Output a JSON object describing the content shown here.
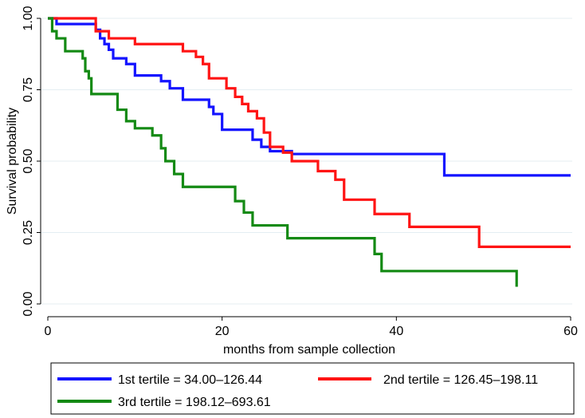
{
  "chart_data": {
    "type": "line",
    "subtype": "kaplan-meier-step",
    "xlabel": "months from sample collection",
    "ylabel": "Survival probability",
    "xlim": [
      0,
      60
    ],
    "ylim": [
      0,
      1
    ],
    "xticks": [
      0,
      20,
      40,
      60
    ],
    "yticks": [
      0,
      0.25,
      0.5,
      0.75,
      1.0
    ],
    "xtick_labels": [
      "0",
      "20",
      "40",
      "60"
    ],
    "ytick_labels": [
      "0.00",
      "0.25",
      "0.50",
      "0.75",
      "1.00"
    ],
    "grid": "horizontal",
    "legend_position": "bottom",
    "series": [
      {
        "name": "1st tertile = 34.00–126.44",
        "color": "#1414ff",
        "x": [
          0,
          1,
          5.5,
          6,
          6.5,
          7,
          7.5,
          9,
          10,
          13,
          14,
          15.5,
          18.5,
          19,
          20,
          23.5,
          24.5,
          25.5,
          28,
          45.5,
          60
        ],
        "y": [
          1.0,
          0.98,
          0.96,
          0.93,
          0.91,
          0.89,
          0.86,
          0.84,
          0.8,
          0.78,
          0.755,
          0.715,
          0.69,
          0.665,
          0.61,
          0.575,
          0.55,
          0.535,
          0.525,
          0.45,
          0.45
        ]
      },
      {
        "name": "2nd tertile = 126.45–198.11",
        "color": "#ff1414",
        "x": [
          0,
          5.5,
          7,
          10,
          15.5,
          17,
          17.8,
          18.5,
          20.5,
          21.5,
          22.3,
          23,
          24,
          24.8,
          25.5,
          27,
          28,
          31,
          33,
          34,
          37.5,
          41.5,
          49.5,
          60
        ],
        "y": [
          1.0,
          0.955,
          0.93,
          0.91,
          0.885,
          0.865,
          0.84,
          0.79,
          0.755,
          0.725,
          0.7,
          0.675,
          0.65,
          0.6,
          0.55,
          0.53,
          0.5,
          0.465,
          0.435,
          0.365,
          0.315,
          0.27,
          0.2,
          0.2
        ]
      },
      {
        "name": "3rd tertile = 198.12–693.61",
        "color": "#148a14",
        "x": [
          0,
          0.5,
          1,
          2,
          4,
          4.3,
          4.7,
          5,
          8,
          9,
          10,
          12,
          13,
          13.5,
          14.5,
          15.5,
          21.5,
          22.5,
          23.5,
          27.5,
          37.5,
          38.3,
          53.8
        ],
        "y": [
          1.0,
          0.955,
          0.93,
          0.885,
          0.86,
          0.815,
          0.79,
          0.735,
          0.68,
          0.64,
          0.615,
          0.59,
          0.545,
          0.5,
          0.455,
          0.41,
          0.36,
          0.32,
          0.275,
          0.23,
          0.175,
          0.115,
          0.06
        ]
      }
    ]
  }
}
